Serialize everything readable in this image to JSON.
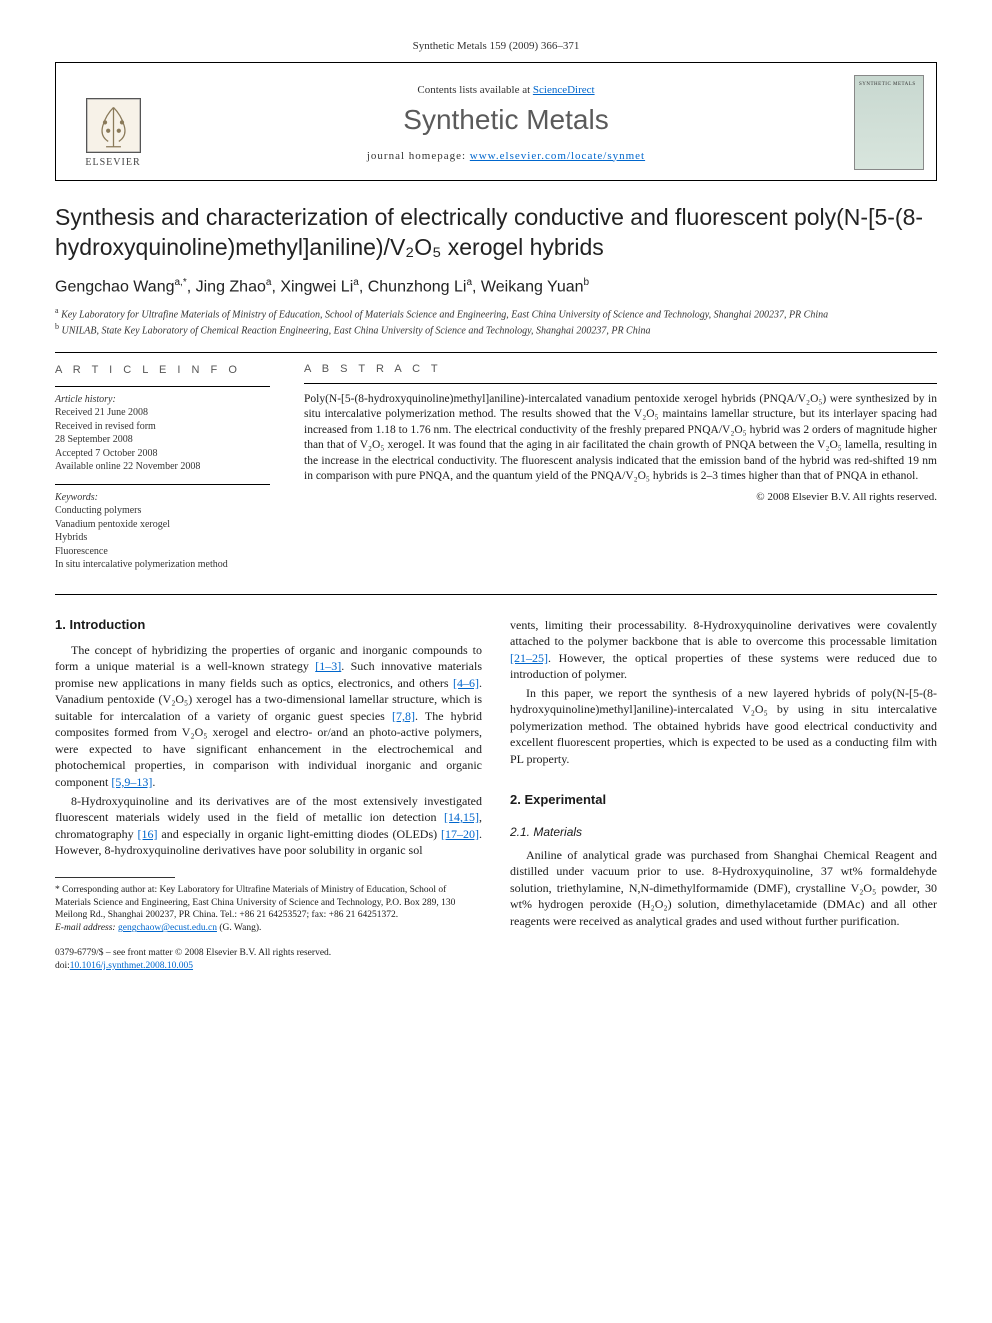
{
  "header": {
    "journal_ref": "Synthetic Metals 159 (2009) 366–371",
    "contents_text": "Contents lists available at ",
    "contents_link": "ScienceDirect",
    "journal_name": "Synthetic Metals",
    "homepage_label": "journal homepage: ",
    "homepage_url": "www.elsevier.com/locate/synmet",
    "publisher_label": "ELSEVIER"
  },
  "article": {
    "title_html": "Synthesis and characterization of electrically conductive and fluorescent poly(N-[5-(8-hydroxyquinoline)methyl]aniline)/V₂O₅ xerogel hybrids",
    "authors_html": "Gengchao Wang<sup>a,*</sup>, Jing Zhao<sup>a</sup>, Xingwei Li<sup>a</sup>, Chunzhong Li<sup>a</sup>, Weikang Yuan<sup>b</sup>",
    "affil_a": "Key Laboratory for Ultrafine Materials of Ministry of Education, School of Materials Science and Engineering, East China University of Science and Technology, Shanghai 200237, PR China",
    "affil_b": "UNILAB, State Key Laboratory of Chemical Reaction Engineering, East China University of Science and Technology, Shanghai 200237, PR China"
  },
  "info": {
    "label": "A R T I C L E   I N F O",
    "history_head": "Article history:",
    "received": "Received 21 June 2008",
    "revised1": "Received in revised form",
    "revised2": "28 September 2008",
    "accepted": "Accepted 7 October 2008",
    "online": "Available online 22 November 2008",
    "keywords_head": "Keywords:",
    "kw1": "Conducting polymers",
    "kw2": "Vanadium pentoxide xerogel",
    "kw3": "Hybrids",
    "kw4": "Fluorescence",
    "kw5": "In situ intercalative polymerization method"
  },
  "abstract": {
    "label": "A B S T R A C T",
    "text": "Poly(N-[5-(8-hydroxyquinoline)methyl]aniline)-intercalated vanadium pentoxide xerogel hybrids (PNQA/V₂O₅) were synthesized by in situ intercalative polymerization method. The results showed that the V₂O₅ maintains lamellar structure, but its interlayer spacing had increased from 1.18 to 1.76 nm. The electrical conductivity of the freshly prepared PNQA/V₂O₅ hybrid was 2 orders of magnitude higher than that of V₂O₅ xerogel. It was found that the aging in air facilitated the chain growth of PNQA between the V₂O₅ lamella, resulting in the increase in the electrical conductivity. The fluorescent analysis indicated that the emission band of the hybrid was red-shifted 19 nm in comparison with pure PNQA, and the quantum yield of the PNQA/V₂O₅ hybrids is 2–3 times higher than that of PNQA in ethanol.",
    "copyright": "© 2008 Elsevier B.V. All rights reserved."
  },
  "body": {
    "sec1_title": "1. Introduction",
    "p1a": "The concept of hybridizing the properties of organic and inorganic compounds to form a unique material is a well-known strategy ",
    "p1_ref1": "[1–3]",
    "p1b": ". Such innovative materials promise new applications in many fields such as optics, electronics, and others ",
    "p1_ref2": "[4–6]",
    "p1c": ". Vanadium pentoxide (V₂O₅) xerogel has a two-dimensional lamellar structure, which is suitable for intercalation of a variety of organic guest species ",
    "p1_ref3": "[7,8]",
    "p1d": ". The hybrid composites formed from V₂O₅ xerogel and electro- or/and an photo-active polymers, were expected to have significant enhancement in the electrochemical and photochemical properties, in comparison with individual inorganic and organic component ",
    "p1_ref4": "[5,9–13]",
    "p1e": ".",
    "p2a": "8-Hydroxyquinoline and its derivatives are of the most extensively investigated fluorescent materials widely used in the field of metallic ion detection ",
    "p2_ref1": "[14,15]",
    "p2b": ", chromatography ",
    "p2_ref2": "[16]",
    "p2c": " and especially in organic light-emitting diodes (OLEDs) ",
    "p2_ref3": "[17–20]",
    "p2d": ". However, 8-hydroxyquinoline derivatives have poor solubility in organic sol",
    "p3a": "vents, limiting their processability. 8-Hydroxyquinoline derivatives were covalently attached to the polymer backbone that is able to overcome this processable limitation ",
    "p3_ref1": "[21–25]",
    "p3b": ". However, the optical properties of these systems were reduced due to introduction of polymer.",
    "p4": "In this paper, we report the synthesis of a new layered hybrids of poly(N-[5-(8-hydroxyquinoline)methyl]aniline)-intercalated V₂O₅ by using in situ intercalative polymerization method. The obtained hybrids have good electrical conductivity and excellent fluorescent properties, which is expected to be used as a conducting film with PL property.",
    "sec2_title": "2. Experimental",
    "sec21_title": "2.1. Materials",
    "p5": "Aniline of analytical grade was purchased from Shanghai Chemical Reagent and distilled under vacuum prior to use. 8-Hydroxyquinoline, 37 wt% formaldehyde solution, triethylamine, N,N-dimethylformamide (DMF), crystalline V₂O₅ powder, 30 wt% hydrogen peroxide (H₂O₂) solution, dimethylacetamide (DMAc) and all other reagents were received as analytical grades and used without further purification."
  },
  "footnote": {
    "corr": "* Corresponding author at: Key Laboratory for Ultrafine Materials of Ministry of Education, School of Materials Science and Engineering, East China University of Science and Technology, P.O. Box 289, 130 Meilong Rd., Shanghai 200237, PR China. Tel.: +86 21 64253527; fax: +86 21 64251372.",
    "email_label": "E-mail address: ",
    "email": "gengchaow@ecust.edu.cn",
    "email_tail": " (G. Wang)."
  },
  "footer": {
    "line1": "0379-6779/$ – see front matter © 2008 Elsevier B.V. All rights reserved.",
    "doi_label": "doi:",
    "doi": "10.1016/j.synthmet.2008.10.005"
  },
  "colors": {
    "link": "#0066cc",
    "text": "#1a1a1a",
    "heading": "#5a5a5a",
    "bg": "#ffffff"
  }
}
